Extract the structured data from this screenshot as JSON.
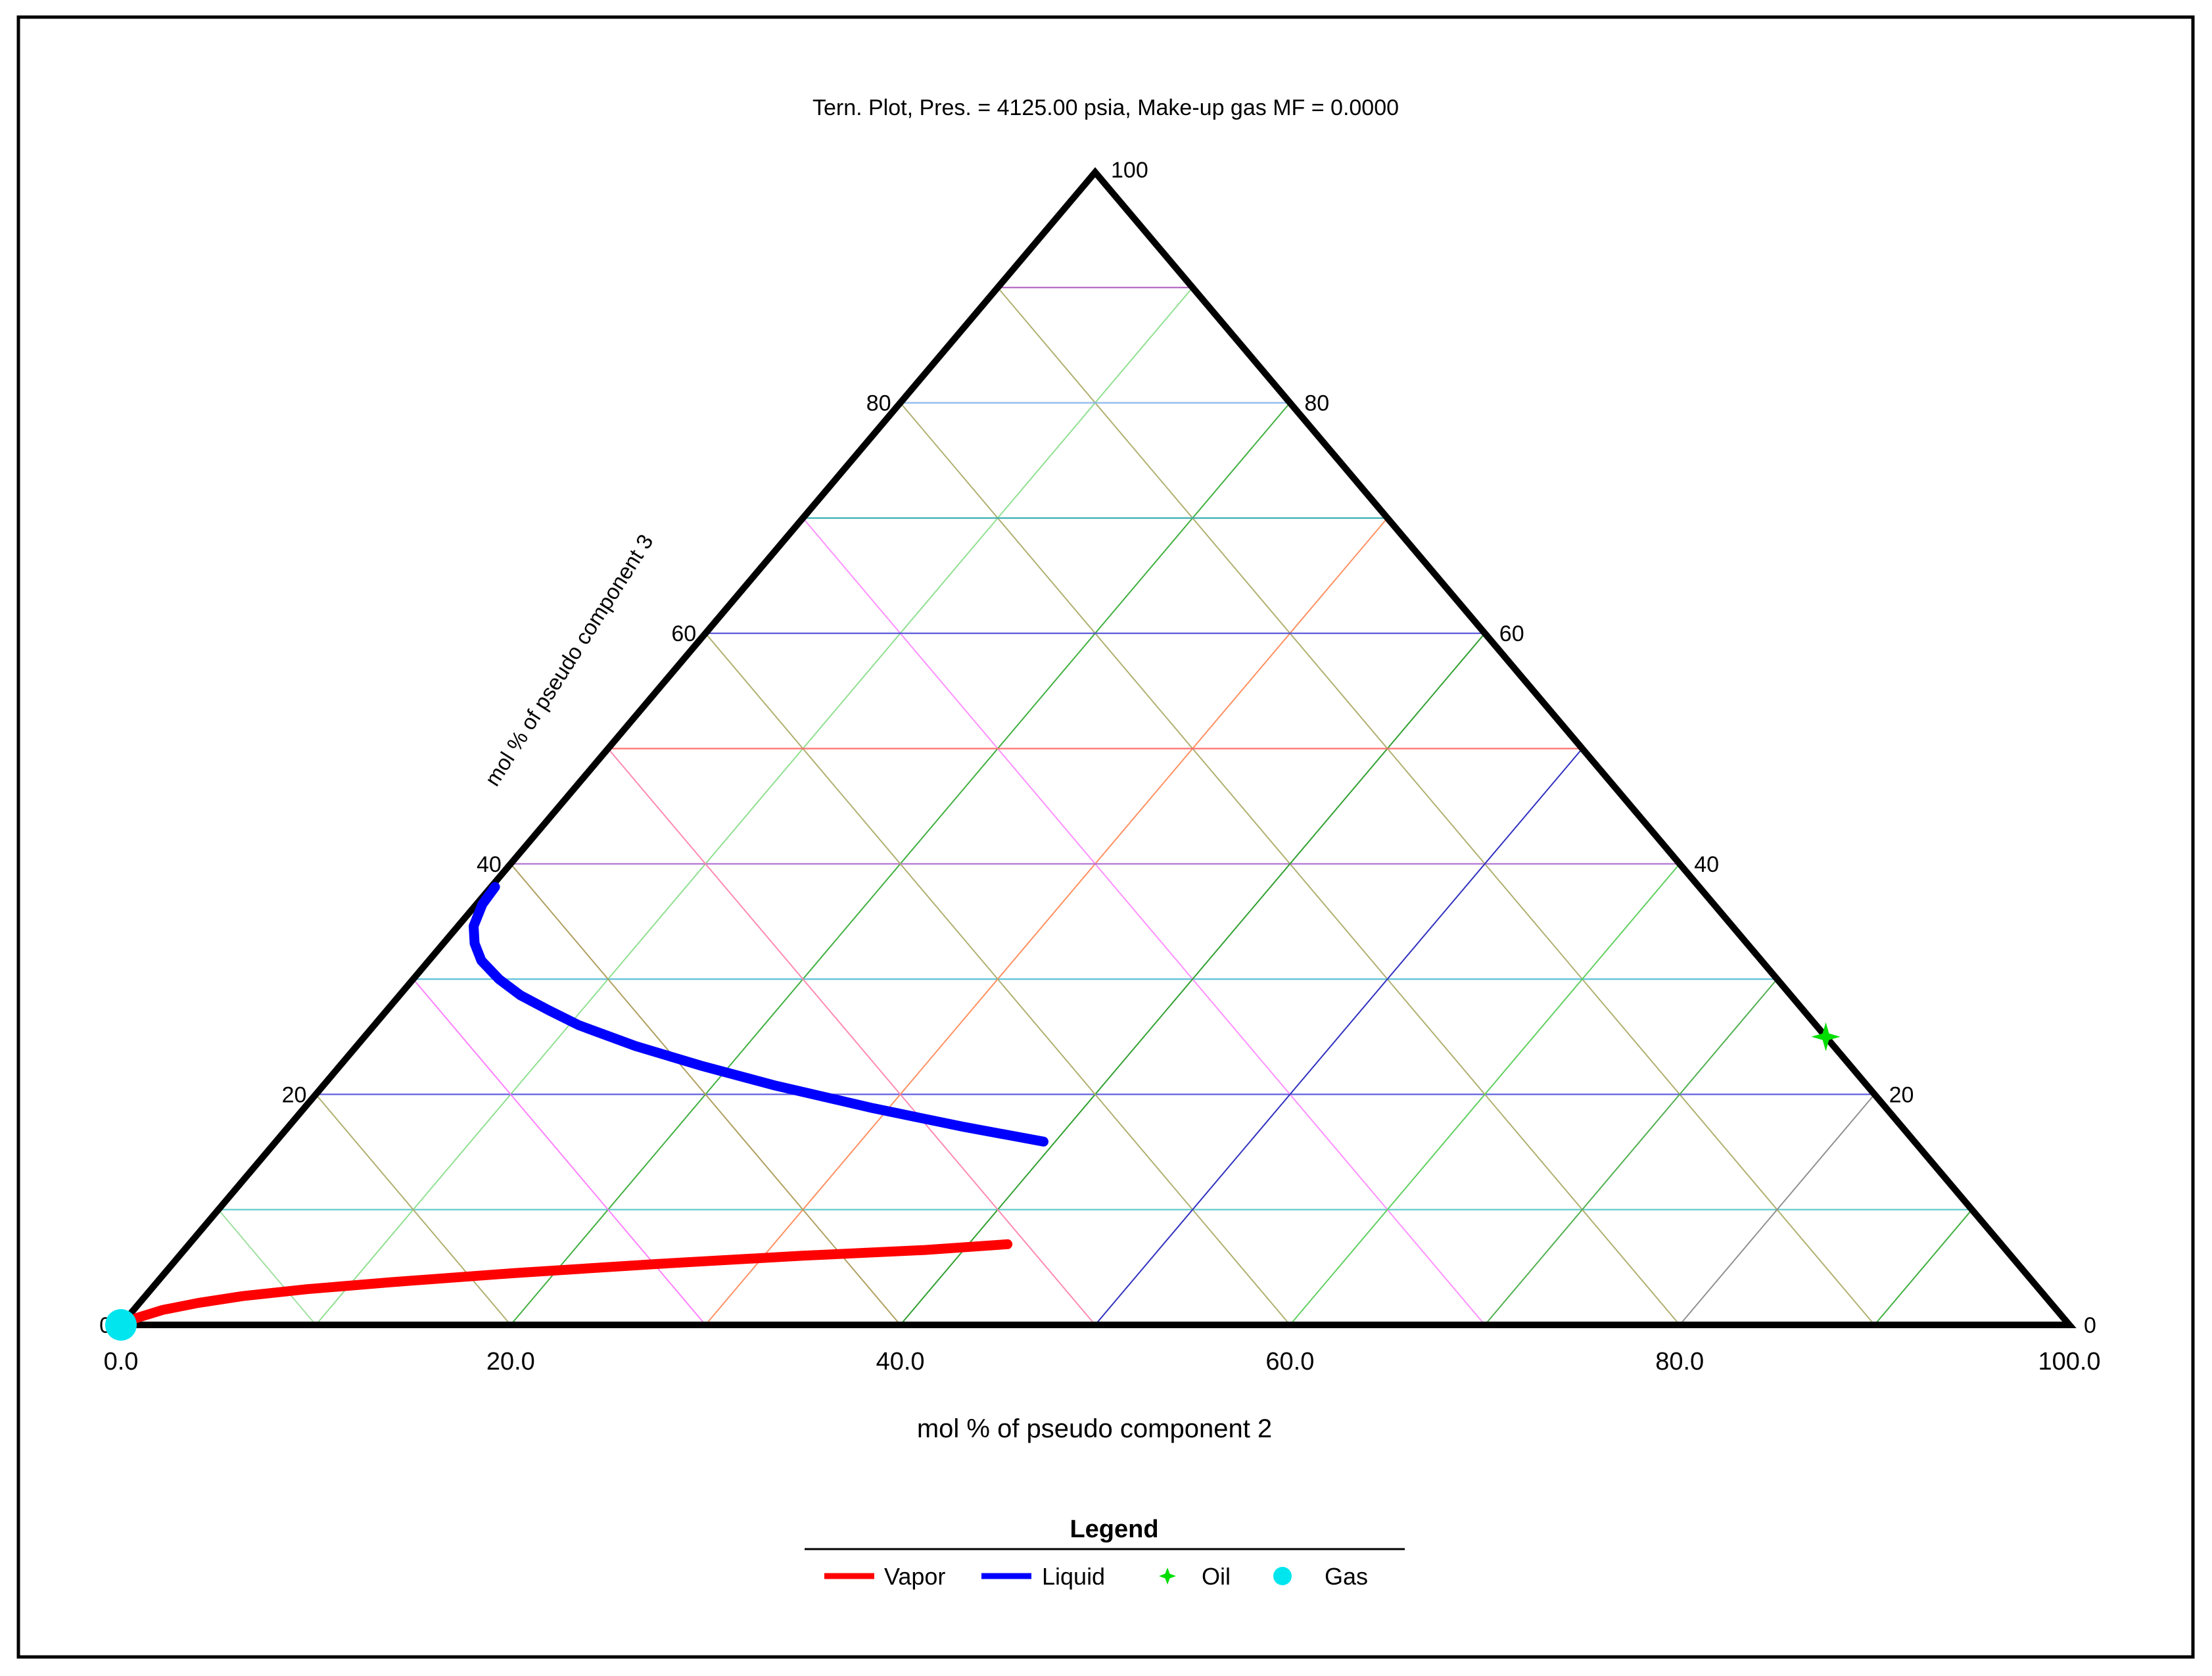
{
  "chart_data": {
    "type": "ternary",
    "title": "Tern. Plot, Pres. = 4125.00 psia, Make-up gas MF = 0.0000",
    "bottom_axis_label": "mol % of pseudo component 2",
    "left_axis_label": "mol % of pseudo component 3",
    "bottom_ticks": [
      "0.0",
      "20.0",
      "40.0",
      "60.0",
      "80.0",
      "100.0"
    ],
    "left_ticks": [
      "0",
      "20",
      "40",
      "60",
      "80",
      "100"
    ],
    "right_ticks": [
      "0",
      "20",
      "40",
      "60",
      "80"
    ],
    "grid": true,
    "legend": {
      "title": "Legend",
      "position": "bottom-center",
      "entries": [
        {
          "name": "Vapor",
          "color": "#ff0000",
          "marker": "line"
        },
        {
          "name": "Liquid",
          "color": "#0000ff",
          "marker": "line"
        },
        {
          "name": "Oil",
          "color": "#00dd00",
          "marker": "star"
        },
        {
          "name": "Gas",
          "color": "#00e5ee",
          "marker": "circle"
        }
      ]
    },
    "series": [
      {
        "name": "Vapor",
        "color": "#ff0000",
        "points": [
          [
            0.0,
            0.0
          ],
          [
            0.5,
            0.6
          ],
          [
            1.5,
            1.3
          ],
          [
            3.0,
            1.9
          ],
          [
            5.0,
            2.5
          ],
          [
            8.0,
            3.1
          ],
          [
            12.0,
            3.7
          ],
          [
            18.0,
            4.5
          ],
          [
            25.0,
            5.3
          ],
          [
            32.0,
            6.0
          ],
          [
            38.0,
            6.5
          ],
          [
            42.0,
            7.0
          ]
        ]
      },
      {
        "name": "Liquid",
        "color": "#0000ff",
        "points": [
          [
            0.2,
            38.0
          ],
          [
            0.3,
            36.5
          ],
          [
            0.8,
            34.6
          ],
          [
            1.6,
            33.1
          ],
          [
            2.7,
            31.6
          ],
          [
            4.4,
            30.0
          ],
          [
            6.2,
            28.6
          ],
          [
            8.3,
            27.3
          ],
          [
            10.5,
            26.0
          ],
          [
            14.3,
            24.2
          ],
          [
            18.5,
            22.5
          ],
          [
            23.1,
            20.8
          ],
          [
            29.2,
            18.8
          ],
          [
            34.6,
            17.2
          ],
          [
            39.4,
            15.9
          ]
        ]
      },
      {
        "name": "Oil",
        "color": "#00dd00",
        "points": [
          [
            75.0,
            25.0
          ]
        ]
      },
      {
        "name": "Gas",
        "color": "#00e5ee",
        "points": [
          [
            0.0,
            0.0
          ]
        ]
      }
    ]
  }
}
